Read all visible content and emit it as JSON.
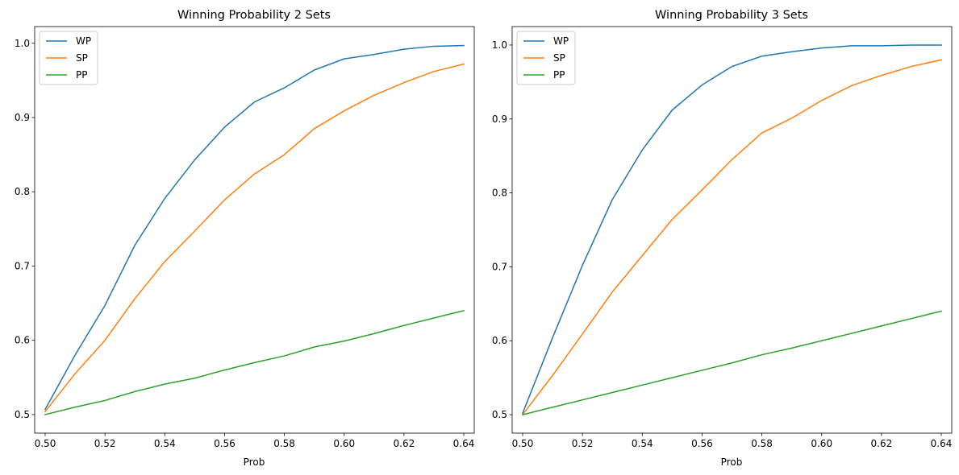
{
  "chart_data": [
    {
      "type": "line",
      "title": "Winning Probability 2 Sets",
      "xlabel": "Prob",
      "ylabel": "",
      "x": [
        0.5,
        0.51,
        0.52,
        0.53,
        0.54,
        0.55,
        0.56,
        0.57,
        0.58,
        0.59,
        0.6,
        0.61,
        0.62,
        0.63,
        0.64
      ],
      "series": [
        {
          "name": "WP",
          "color": "#1f77b4",
          "values": [
            0.507,
            0.58,
            0.647,
            0.728,
            0.791,
            0.843,
            0.887,
            0.921,
            0.94,
            0.964,
            0.979,
            0.985,
            0.992,
            0.996,
            0.997
          ]
        },
        {
          "name": "SP",
          "color": "#ff7f0e",
          "values": [
            0.504,
            0.555,
            0.6,
            0.656,
            0.706,
            0.747,
            0.789,
            0.824,
            0.85,
            0.885,
            0.909,
            0.93,
            0.947,
            0.962,
            0.972
          ]
        },
        {
          "name": "PP",
          "color": "#2ca02c",
          "values": [
            0.5,
            0.51,
            0.519,
            0.531,
            0.541,
            0.549,
            0.56,
            0.57,
            0.579,
            0.591,
            0.599,
            0.609,
            0.62,
            0.63,
            0.64
          ]
        }
      ],
      "xlim": [
        0.4965,
        0.6435
      ],
      "ylim": [
        0.475,
        1.0225
      ],
      "xticks": [
        "0.50",
        "0.52",
        "0.54",
        "0.56",
        "0.58",
        "0.60",
        "0.62",
        "0.64"
      ],
      "yticks": [
        "0.5",
        "0.6",
        "0.7",
        "0.8",
        "0.9",
        "1.0"
      ],
      "grid": false,
      "legend_position": "top-left"
    },
    {
      "type": "line",
      "title": "Winning Probability 3 Sets",
      "xlabel": "Prob",
      "ylabel": "",
      "x": [
        0.5,
        0.51,
        0.52,
        0.53,
        0.54,
        0.55,
        0.56,
        0.57,
        0.58,
        0.59,
        0.6,
        0.61,
        0.62,
        0.63,
        0.64
      ],
      "series": [
        {
          "name": "WP",
          "color": "#1f77b4",
          "values": [
            0.502,
            0.604,
            0.702,
            0.791,
            0.858,
            0.912,
            0.946,
            0.971,
            0.985,
            0.991,
            0.996,
            0.999,
            0.999,
            1.0,
            1.0
          ]
        },
        {
          "name": "SP",
          "color": "#ff7f0e",
          "values": [
            0.5,
            0.553,
            0.609,
            0.666,
            0.715,
            0.764,
            0.804,
            0.845,
            0.881,
            0.901,
            0.925,
            0.945,
            0.959,
            0.971,
            0.98
          ]
        },
        {
          "name": "PP",
          "color": "#2ca02c",
          "values": [
            0.5,
            0.51,
            0.52,
            0.53,
            0.54,
            0.55,
            0.56,
            0.57,
            0.581,
            0.59,
            0.6,
            0.61,
            0.62,
            0.63,
            0.64
          ]
        }
      ],
      "xlim": [
        0.4965,
        0.6435
      ],
      "ylim": [
        0.475,
        1.025
      ],
      "xticks": [
        "0.50",
        "0.52",
        "0.54",
        "0.56",
        "0.58",
        "0.60",
        "0.62",
        "0.64"
      ],
      "yticks": [
        "0.5",
        "0.6",
        "0.7",
        "0.8",
        "0.9",
        "1.0"
      ],
      "grid": false,
      "legend_position": "top-left"
    }
  ]
}
